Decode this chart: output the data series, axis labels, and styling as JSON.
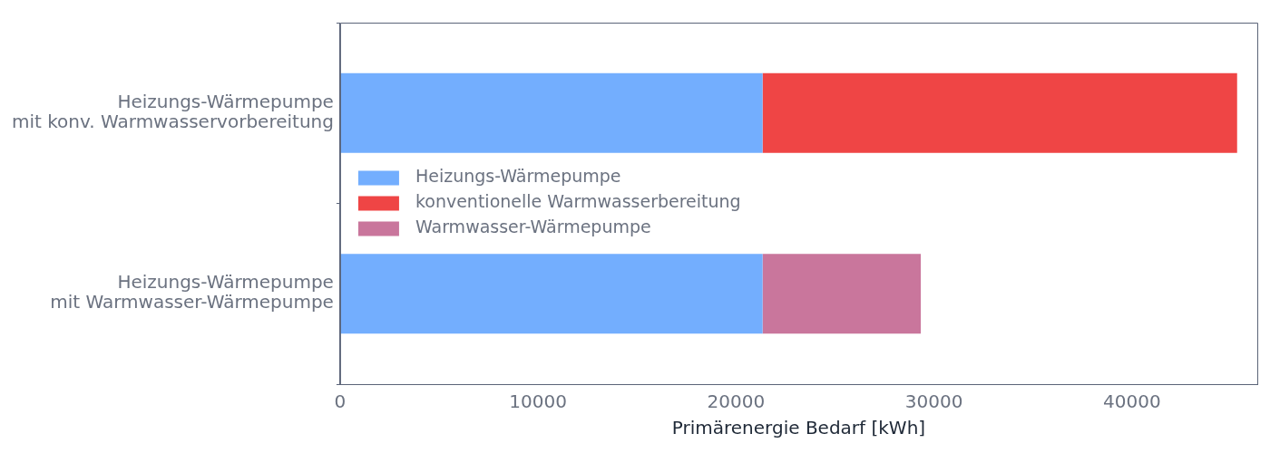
{
  "chart_data": {
    "type": "bar",
    "orientation": "horizontal",
    "stacked": true,
    "categories": [
      "Heizungs-Wärmepumpe\nmit konv. Warmwasservorbereitung",
      "Heizungs-Wärmepumpe\nmit Warmwasser-Wärmepumpe"
    ],
    "series": [
      {
        "name": "Heizungs-Wärmepumpe",
        "color": "#73aefe",
        "values": [
          21340,
          21340
        ]
      },
      {
        "name": "konventionelle Warmwasserbereitung",
        "color": "#ef4545",
        "values": [
          23970,
          null
        ]
      },
      {
        "name": "Warmwasser-Wärmepumpe",
        "color": "#c9769c",
        "values": [
          null,
          7990
        ]
      }
    ],
    "xlabel": "Primärenergie Bedarf [kWh]",
    "xlim": [
      0,
      46330
    ],
    "xticks": [
      0,
      10000,
      20000,
      30000,
      40000
    ],
    "grid": false,
    "legend": "left"
  }
}
